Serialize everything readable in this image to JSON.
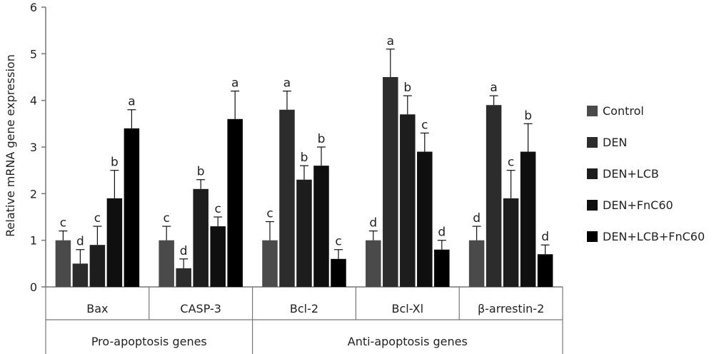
{
  "chart_data": {
    "type": "bar",
    "ylabel": "Relative mRNA gene expression",
    "ylim": [
      0,
      6
    ],
    "yticks": [
      0,
      1,
      2,
      3,
      4,
      5,
      6
    ],
    "categories": [
      "Bax",
      "CASP-3",
      "Bcl-2",
      "Bcl-Xl",
      "β-arrestin-2"
    ],
    "groups": [
      {
        "label": "Pro-apoptosis genes",
        "categories": [
          "Bax",
          "CASP-3"
        ]
      },
      {
        "label": "Anti-apoptosis genes",
        "categories": [
          "Bcl-2",
          "Bcl-Xl",
          "β-arrestin-2"
        ]
      }
    ],
    "legend_position": "right",
    "series": [
      {
        "name": "Control",
        "color": "#4a4a4a",
        "values": [
          1.0,
          1.0,
          1.0,
          1.0,
          1.0
        ],
        "errors": [
          0.2,
          0.3,
          0.4,
          0.2,
          0.3
        ],
        "labels": [
          "c",
          "c",
          "c",
          "d",
          "d"
        ]
      },
      {
        "name": "DEN",
        "color": "#2c2c2c",
        "values": [
          0.5,
          0.4,
          3.8,
          4.5,
          3.9
        ],
        "errors": [
          0.3,
          0.2,
          0.4,
          0.6,
          0.2
        ],
        "labels": [
          "d",
          "d",
          "a",
          "a",
          "a"
        ]
      },
      {
        "name": "DEN+LCB",
        "color": "#1d1d1d",
        "values": [
          0.9,
          2.1,
          2.3,
          3.7,
          1.9
        ],
        "errors": [
          0.4,
          0.2,
          0.3,
          0.4,
          0.6
        ],
        "labels": [
          "c",
          "b",
          "b",
          "b",
          "c"
        ]
      },
      {
        "name": "DEN+FnC60",
        "color": "#0f0f0f",
        "values": [
          1.9,
          1.3,
          2.6,
          2.9,
          2.9
        ],
        "errors": [
          0.6,
          0.2,
          0.4,
          0.4,
          0.6
        ],
        "labels": [
          "b",
          "c",
          "b",
          "c",
          "b"
        ]
      },
      {
        "name": "DEN+LCB+FnC60",
        "color": "#000000",
        "values": [
          3.4,
          3.6,
          0.6,
          0.8,
          0.7
        ],
        "errors": [
          0.4,
          0.6,
          0.2,
          0.2,
          0.2
        ],
        "labels": [
          "a",
          "a",
          "c",
          "d",
          "d"
        ]
      }
    ]
  }
}
